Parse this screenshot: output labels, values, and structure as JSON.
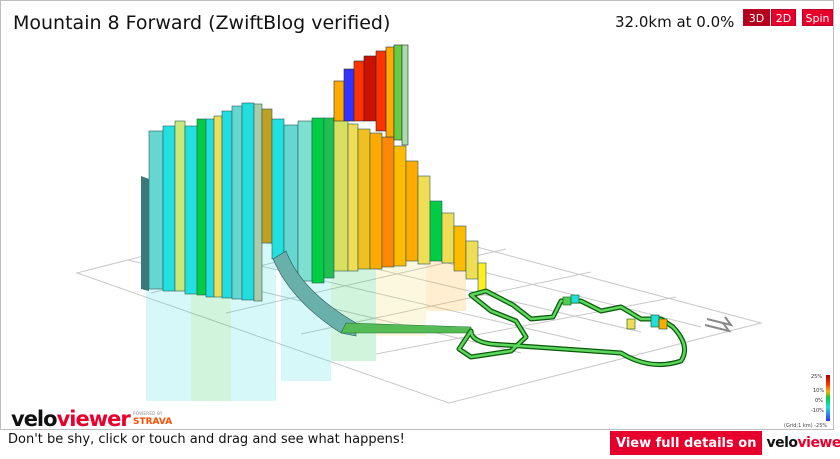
{
  "header": {
    "title": "Mountain 8 Forward (ZwiftBlog verified)",
    "stat": "32.0km at 0.0%"
  },
  "view_buttons": {
    "three_d": "3D",
    "two_d": "2D",
    "spin": "Spin"
  },
  "logo": {
    "velo": "velo",
    "viewer": "viewer",
    "powered_by": "POWERED BY",
    "strava": "STRAVA"
  },
  "gradient_legend": {
    "labels": [
      "25%",
      "10%",
      "0%",
      "-10%",
      "-25%"
    ],
    "grid_note": "(Grid:1 km) -25%"
  },
  "footer": {
    "hint": "Don't be shy, click or touch and drag and see what happens!",
    "details_label": "View full details on",
    "details_logo_velo": "velo",
    "details_logo_viewer": "viewer"
  },
  "colors": {
    "brand_red": "#e8002d",
    "gradient_scale": [
      "#b30000",
      "#ff3300",
      "#ffaa00",
      "#eedd55",
      "#00cc44",
      "#22dddd",
      "#3333ff"
    ]
  }
}
